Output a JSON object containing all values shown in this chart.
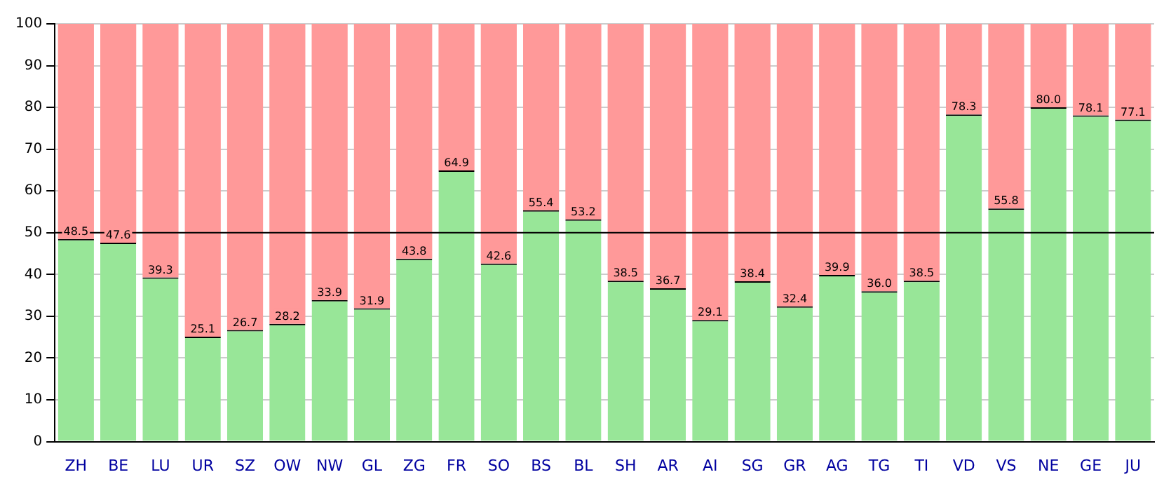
{
  "chart_data": {
    "type": "bar",
    "stacked": true,
    "categories": [
      "ZH",
      "BE",
      "LU",
      "UR",
      "SZ",
      "OW",
      "NW",
      "GL",
      "ZG",
      "FR",
      "SO",
      "BS",
      "BL",
      "SH",
      "AR",
      "AI",
      "SG",
      "GR",
      "AG",
      "TG",
      "TI",
      "VD",
      "VS",
      "NE",
      "GE",
      "JU"
    ],
    "series": [
      {
        "color": "#98e698",
        "values": [
          48.5,
          47.6,
          39.3,
          25.1,
          26.7,
          28.2,
          33.9,
          31.9,
          43.8,
          64.9,
          42.6,
          55.4,
          53.2,
          38.5,
          36.7,
          29.1,
          38.4,
          32.4,
          39.9,
          36.0,
          38.5,
          78.3,
          55.8,
          80.0,
          78.1,
          77.1
        ],
        "value_labels": [
          "48.5",
          "47.6",
          "39.3",
          "25.1",
          "26.7",
          "28.2",
          "33.9",
          "31.9",
          "43.8",
          "64.9",
          "42.6",
          "55.4",
          "53.2",
          "38.5",
          "36.7",
          "29.1",
          "38.4",
          "32.4",
          "39.9",
          "36.0",
          "38.5",
          "78.3",
          "55.8",
          "80.0",
          "78.1",
          "77.1"
        ]
      },
      {
        "color": "#ff9999",
        "values": [
          51.5,
          52.4,
          60.7,
          74.9,
          73.3,
          71.8,
          66.1,
          68.1,
          56.2,
          35.1,
          57.4,
          44.6,
          46.8,
          61.5,
          63.3,
          70.9,
          61.6,
          67.6,
          60.1,
          64.0,
          61.5,
          21.7,
          44.2,
          20.0,
          21.9,
          22.9
        ]
      }
    ],
    "ylim": [
      0,
      100
    ],
    "yticks": [
      0,
      10,
      20,
      30,
      40,
      50,
      60,
      70,
      80,
      90,
      100
    ],
    "grid": "y",
    "legend": false,
    "ref_lines": [
      {
        "axis": "y",
        "value": 50,
        "color": "#000000"
      }
    ]
  }
}
